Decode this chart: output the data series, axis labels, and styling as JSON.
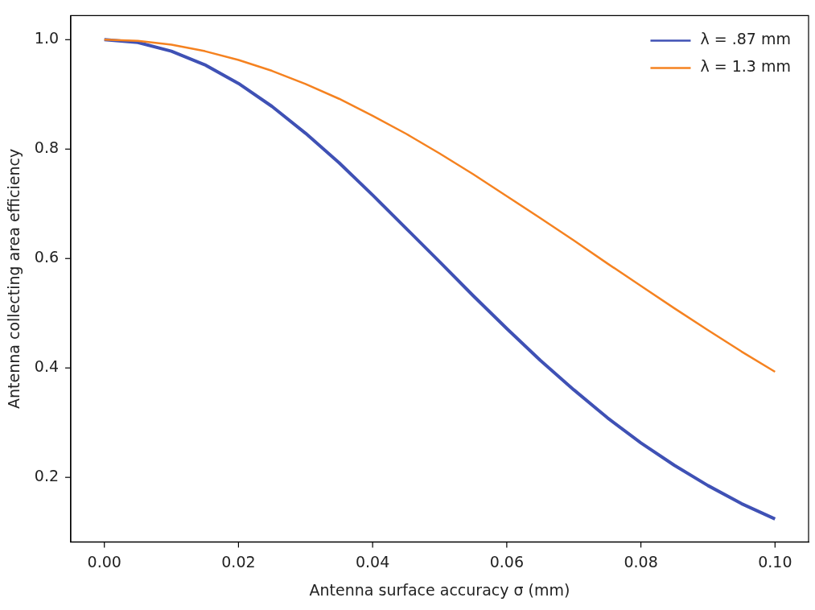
{
  "chart_data": {
    "type": "line",
    "xlabel": "Antenna surface accuracy σ (mm)",
    "ylabel": "Antenna collecting area efficiency",
    "x": [
      0,
      0.005,
      0.01,
      0.015,
      0.02,
      0.025,
      0.03,
      0.035,
      0.04,
      0.045,
      0.05,
      0.055,
      0.06,
      0.065,
      0.07,
      0.075,
      0.08,
      0.085,
      0.09,
      0.095,
      0.1
    ],
    "series": [
      {
        "name": "λ = .87 mm",
        "color": "#3f51b5",
        "values": [
          1,
          0.995,
          0.979,
          0.954,
          0.92,
          0.878,
          0.829,
          0.775,
          0.716,
          0.655,
          0.594,
          0.532,
          0.472,
          0.414,
          0.36,
          0.309,
          0.263,
          0.222,
          0.185,
          0.152,
          0.124
        ]
      },
      {
        "name": "λ = 1.3 mm",
        "color": "#f58220",
        "values": [
          1,
          0.998,
          0.991,
          0.979,
          0.963,
          0.943,
          0.919,
          0.892,
          0.861,
          0.828,
          0.792,
          0.754,
          0.714,
          0.674,
          0.633,
          0.591,
          0.55,
          0.509,
          0.469,
          0.43,
          0.393
        ]
      }
    ],
    "xlim": [
      -0.005,
      0.105
    ],
    "ylim": [
      0.082,
      1.044
    ],
    "xticks": [
      {
        "value": 0,
        "label": "0.00"
      },
      {
        "value": 0.02,
        "label": "0.02"
      },
      {
        "value": 0.04,
        "label": "0.04"
      },
      {
        "value": 0.06,
        "label": "0.06"
      },
      {
        "value": 0.08,
        "label": "0.08"
      },
      {
        "value": 0.1,
        "label": "0.10"
      }
    ],
    "yticks": [
      0.2,
      0.4,
      0.6,
      0.8,
      {
        "value": 1,
        "label": "1.0"
      }
    ],
    "grid": false,
    "legend": "top right",
    "marker": "none",
    "line_style": "solid"
  }
}
